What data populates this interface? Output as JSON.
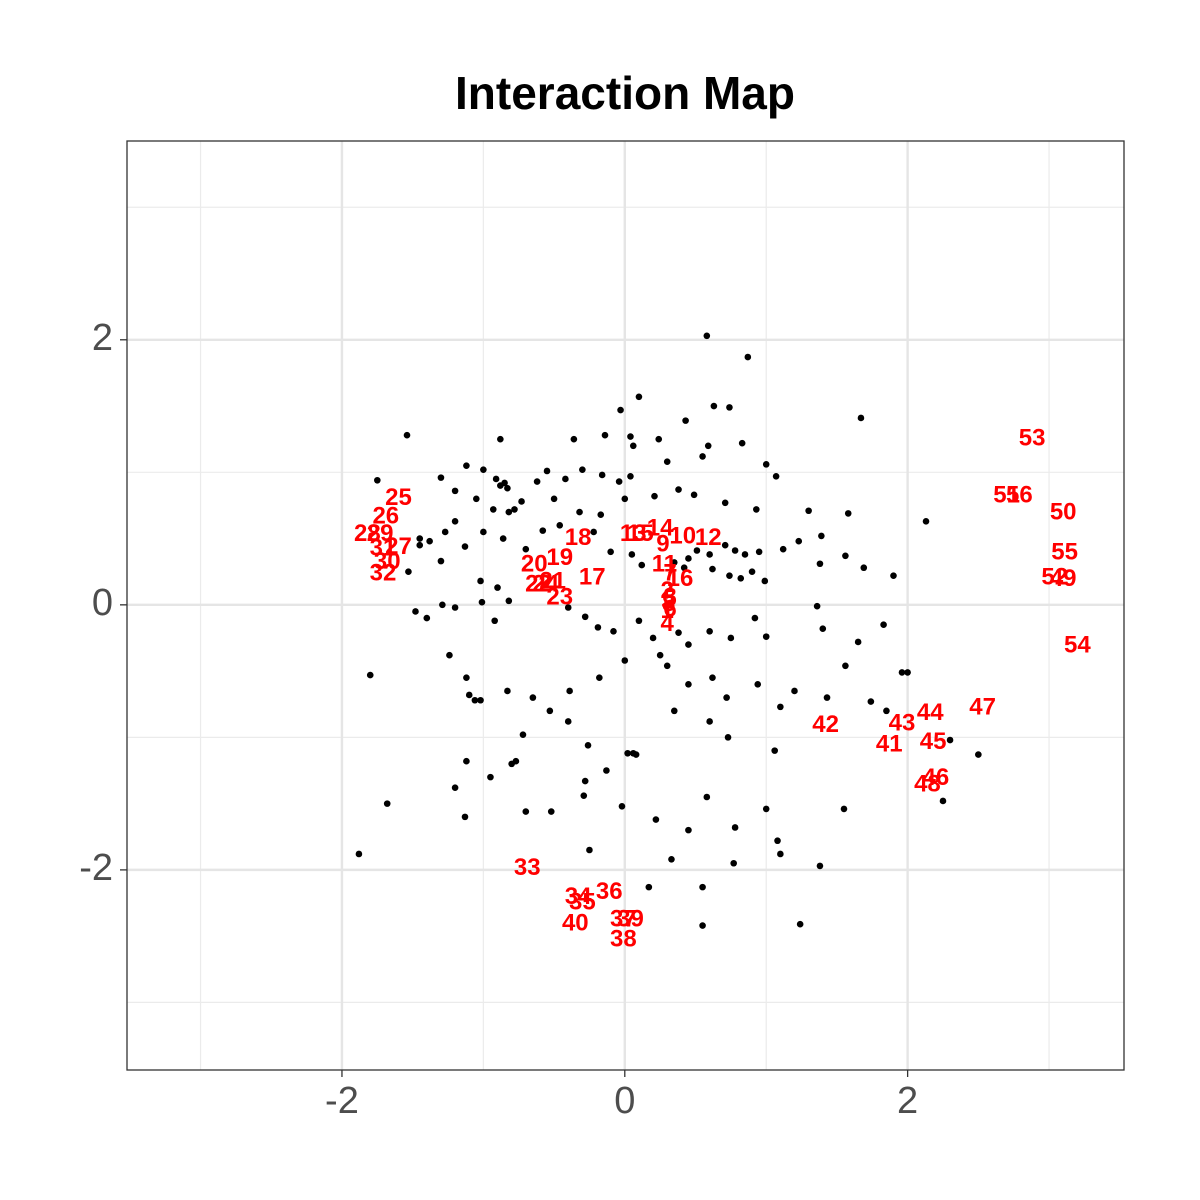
{
  "chart_data": {
    "type": "scatter",
    "title": "Interaction Map",
    "xlim": [
      -3.52,
      3.53
    ],
    "ylim": [
      -3.51,
      3.5
    ],
    "xticks": [
      -2,
      0,
      2
    ],
    "yticks": [
      -2,
      0,
      2
    ],
    "x_minor_grid": [
      -3,
      -1,
      1,
      3
    ],
    "y_minor_grid": [
      -3,
      -1,
      1,
      3
    ],
    "grid": true,
    "points": {
      "color": "#000000",
      "x": [
        0.58,
        0.87,
        1.67,
        0.1,
        -0.03,
        0.63,
        0.74,
        0.43,
        -1.54,
        -0.88,
        -0.36,
        -0.14,
        0.04,
        0.24,
        0.06,
        0.59,
        0.83,
        1.0,
        1.07,
        0.55,
        0.3,
        -1.12,
        -1.0,
        -0.91,
        -0.88,
        -0.85,
        -0.83,
        -0.55,
        -0.62,
        -0.42,
        -0.3,
        -0.16,
        -0.04,
        0.04,
        -1.75,
        -1.3,
        -1.2,
        -1.05,
        -0.93,
        -0.82,
        -0.78,
        -0.73,
        -0.5,
        -0.32,
        -0.17,
        0.0,
        0.21,
        0.38,
        0.49,
        0.71,
        0.93,
        1.3,
        1.58,
        2.13,
        1.39,
        1.23,
        1.12,
        0.95,
        0.85,
        0.78,
        0.71,
        0.6,
        0.51,
        0.45,
        0.35,
        0.42,
        0.62,
        0.74,
        0.82,
        0.9,
        0.99,
        1.38,
        1.56,
        1.69,
        1.9,
        -1.45,
        -1.38,
        -1.27,
        -1.2,
        -1.13,
        -1.0,
        -0.86,
        -0.7,
        -0.58,
        -0.46,
        -0.22,
        -0.1,
        0.05,
        0.12,
        -1.53,
        -1.45,
        -1.3,
        -1.02,
        -0.9,
        -0.82,
        -1.29,
        -1.48,
        -1.4,
        -1.2,
        -1.01,
        -0.92,
        -0.4,
        -0.28,
        -0.19,
        -0.08,
        0.1,
        0.2,
        0.38,
        0.45,
        0.6,
        0.75,
        0.92,
        1.0,
        1.36,
        1.4,
        1.65,
        1.83,
        2.0,
        1.96,
        -1.8,
        -1.24,
        -1.12,
        -1.1,
        -1.06,
        -1.02,
        -0.83,
        -0.65,
        -0.53,
        -0.39,
        -0.18,
        0.0,
        0.25,
        0.3,
        0.45,
        0.62,
        0.72,
        0.94,
        1.1,
        1.2,
        1.43,
        1.56,
        1.74,
        1.85,
        2.3,
        2.5,
        2.25,
        1.06,
        0.73,
        0.6,
        0.35,
        0.08,
        0.06,
        0.02,
        -0.26,
        -0.4,
        -0.72,
        -0.8,
        -0.77,
        -1.12,
        -1.2,
        -1.13,
        -0.95,
        -0.7,
        -0.52,
        -0.29,
        -0.02,
        0.22,
        0.45,
        0.58,
        0.78,
        1.0,
        1.55,
        1.08,
        1.1,
        1.38,
        0.77,
        0.33,
        -0.25,
        -1.88,
        -1.68,
        0.17,
        0.55,
        0.55,
        1.24,
        -0.13,
        -0.28
      ],
      "y": [
        2.03,
        1.87,
        1.41,
        1.57,
        1.47,
        1.5,
        1.49,
        1.39,
        1.28,
        1.25,
        1.25,
        1.28,
        1.27,
        1.25,
        1.2,
        1.2,
        1.22,
        1.06,
        0.97,
        1.12,
        1.08,
        1.05,
        1.02,
        0.95,
        0.9,
        0.92,
        0.88,
        1.01,
        0.93,
        0.95,
        1.02,
        0.98,
        0.93,
        0.97,
        0.94,
        0.96,
        0.86,
        0.8,
        0.72,
        0.7,
        0.72,
        0.78,
        0.8,
        0.7,
        0.68,
        0.8,
        0.82,
        0.87,
        0.83,
        0.77,
        0.72,
        0.71,
        0.69,
        0.63,
        0.52,
        0.48,
        0.42,
        0.4,
        0.38,
        0.41,
        0.45,
        0.38,
        0.41,
        0.35,
        0.32,
        0.28,
        0.27,
        0.22,
        0.2,
        0.25,
        0.18,
        0.31,
        0.37,
        0.28,
        0.22,
        0.5,
        0.48,
        0.55,
        0.63,
        0.44,
        0.55,
        0.5,
        0.42,
        0.56,
        0.6,
        0.55,
        0.4,
        0.38,
        0.3,
        0.25,
        0.45,
        0.33,
        0.18,
        0.13,
        0.03,
        0.0,
        -0.05,
        -0.1,
        -0.02,
        0.02,
        -0.12,
        -0.02,
        -0.09,
        -0.17,
        -0.2,
        -0.12,
        -0.25,
        -0.21,
        -0.3,
        -0.2,
        -0.25,
        -0.1,
        -0.24,
        -0.01,
        -0.18,
        -0.28,
        -0.15,
        -0.51,
        -0.51,
        -0.53,
        -0.38,
        -0.55,
        -0.68,
        -0.72,
        -0.72,
        -0.65,
        -0.7,
        -0.8,
        -0.65,
        -0.55,
        -0.42,
        -0.38,
        -0.46,
        -0.6,
        -0.55,
        -0.7,
        -0.6,
        -0.77,
        -0.65,
        -0.7,
        -0.46,
        -0.73,
        -0.8,
        -1.02,
        -1.13,
        -1.48,
        -1.1,
        -1.0,
        -0.88,
        -0.8,
        -1.13,
        -1.12,
        -1.12,
        -1.06,
        -0.88,
        -0.98,
        -1.2,
        -1.18,
        -1.18,
        -1.38,
        -1.6,
        -1.3,
        -1.56,
        -1.56,
        -1.44,
        -1.52,
        -1.62,
        -1.7,
        -1.45,
        -1.68,
        -1.54,
        -1.54,
        -1.78,
        -1.88,
        -1.97,
        -1.95,
        -1.92,
        -1.85,
        -1.88,
        -1.5,
        -2.13,
        -2.13,
        -2.42,
        -2.41,
        -1.25,
        -1.33
      ]
    },
    "labels": {
      "color": "#ff0000",
      "text": [
        "1",
        "2",
        "3",
        "4",
        "5",
        "6",
        "7",
        "8",
        "9",
        "10",
        "11",
        "12",
        "13",
        "14",
        "15",
        "16",
        "17",
        "18",
        "19",
        "20",
        "21",
        "22",
        "23",
        "24",
        "25",
        "26",
        "27",
        "28",
        "29",
        "30",
        "31",
        "32",
        "33",
        "34",
        "35",
        "36",
        "37",
        "38",
        "39",
        "40",
        "41",
        "42",
        "43",
        "44",
        "45",
        "46",
        "47",
        "48",
        "49",
        "50",
        "51",
        "52",
        "53",
        "54",
        "55",
        "56"
      ],
      "x": [
        0.3,
        0.3,
        0.32,
        0.3,
        0.32,
        0.32,
        0.32,
        0.31,
        0.27,
        0.41,
        0.28,
        0.59,
        0.06,
        0.25,
        0.11,
        0.39,
        -0.23,
        -0.33,
        -0.46,
        -0.64,
        -0.51,
        -0.61,
        -0.46,
        -0.56,
        -1.6,
        -1.69,
        -1.6,
        -1.82,
        -1.73,
        -1.68,
        -1.71,
        -1.71,
        -0.69,
        -0.33,
        -0.3,
        -0.11,
        -0.01,
        -0.01,
        0.04,
        -0.35,
        1.87,
        1.42,
        1.96,
        2.16,
        2.18,
        2.2,
        2.53,
        2.14,
        3.1,
        3.1,
        2.7,
        3.04,
        2.88,
        3.2,
        3.11,
        2.79
      ],
      "y": [
        -0.05,
        0.1,
        0.05,
        -0.15,
        0.04,
        -0.04,
        0.23,
        0.0,
        0.45,
        0.51,
        0.3,
        0.5,
        0.53,
        0.57,
        0.53,
        0.19,
        0.2,
        0.5,
        0.35,
        0.3,
        0.17,
        0.15,
        0.05,
        0.15,
        0.8,
        0.66,
        0.43,
        0.53,
        0.53,
        0.32,
        0.42,
        0.23,
        -1.99,
        -2.21,
        -2.25,
        -2.17,
        -2.38,
        -2.53,
        -2.38,
        -2.41,
        -1.06,
        -0.91,
        -0.9,
        -0.82,
        -1.04,
        -1.31,
        -0.78,
        -1.36,
        0.19,
        0.69,
        0.82,
        0.2,
        1.25,
        -0.31,
        0.39,
        0.82
      ]
    }
  }
}
